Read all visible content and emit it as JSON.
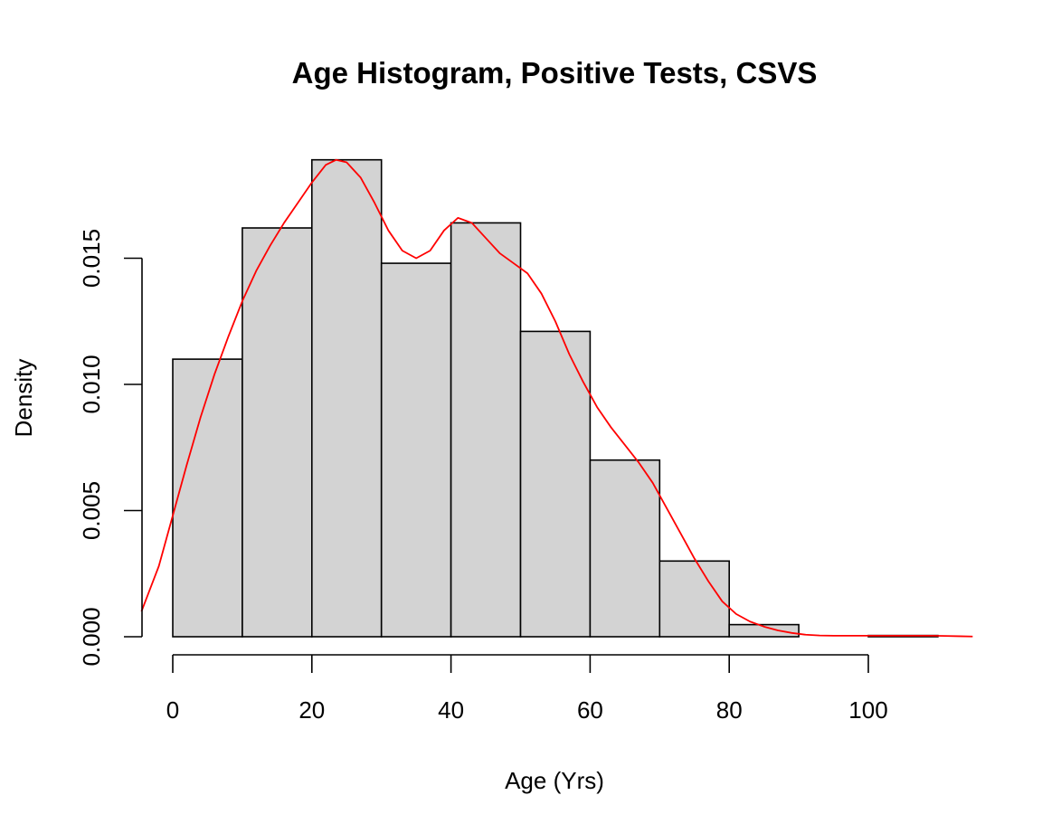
{
  "chart_data": {
    "type": "bar",
    "title": "Age Histogram, Positive Tests,  CSVS",
    "xlabel": "Age (Yrs)",
    "ylabel": "Density",
    "bins": [
      {
        "start": 0,
        "end": 10,
        "density": 0.011
      },
      {
        "start": 10,
        "end": 20,
        "density": 0.0162
      },
      {
        "start": 20,
        "end": 30,
        "density": 0.0189
      },
      {
        "start": 30,
        "end": 40,
        "density": 0.0148
      },
      {
        "start": 40,
        "end": 50,
        "density": 0.0164
      },
      {
        "start": 50,
        "end": 60,
        "density": 0.0121
      },
      {
        "start": 60,
        "end": 70,
        "density": 0.007
      },
      {
        "start": 70,
        "end": 80,
        "density": 0.003
      },
      {
        "start": 80,
        "end": 90,
        "density": 0.00048
      },
      {
        "start": 90,
        "end": 100,
        "density": 0.0
      },
      {
        "start": 100,
        "end": 110,
        "density": 5e-05
      }
    ],
    "x_ticks": [
      0,
      20,
      40,
      60,
      80,
      100
    ],
    "x_tick_labels": [
      "0",
      "20",
      "40",
      "60",
      "80",
      "100"
    ],
    "y_ticks": [
      0,
      0.005,
      0.01,
      0.015
    ],
    "y_tick_labels": [
      "0.000",
      "0.005",
      "0.010",
      "0.015"
    ],
    "xlim": [
      -4.5,
      115
    ],
    "ylim": [
      0,
      0.0189
    ],
    "grid": false,
    "legend": "none",
    "density_curve": {
      "x": [
        -4.5,
        -2,
        0,
        2,
        4,
        6,
        8,
        10,
        12,
        14,
        16,
        18,
        20,
        22,
        23.5,
        25,
        27,
        29,
        31,
        33,
        35,
        37,
        39,
        41,
        43,
        45,
        47,
        49,
        51,
        53,
        55,
        57,
        59,
        61,
        63,
        65,
        67,
        69,
        71,
        73,
        75,
        77,
        79,
        81,
        83,
        85,
        87,
        89,
        91,
        93,
        95,
        97,
        99,
        101,
        103,
        105,
        107,
        109,
        111,
        113,
        115
      ],
      "y": [
        0.001,
        0.0028,
        0.0048,
        0.0068,
        0.0087,
        0.0104,
        0.0119,
        0.0133,
        0.0145,
        0.0155,
        0.0164,
        0.0172,
        0.018,
        0.0187,
        0.0189,
        0.0188,
        0.0182,
        0.0172,
        0.0161,
        0.0153,
        0.015,
        0.0153,
        0.0161,
        0.0166,
        0.0164,
        0.0158,
        0.0152,
        0.0148,
        0.0144,
        0.0136,
        0.0125,
        0.0112,
        0.0101,
        0.0091,
        0.0083,
        0.0076,
        0.0069,
        0.0061,
        0.0051,
        0.0041,
        0.0031,
        0.0022,
        0.0014,
        0.0009,
        0.0006,
        0.0004,
        0.00025,
        0.00015,
        8e-05,
        5e-05,
        4e-05,
        4e-05,
        4e-05,
        4e-05,
        4e-05,
        4e-05,
        4e-05,
        4e-05,
        3e-05,
        2e-05,
        1e-05
      ]
    },
    "colors": {
      "bar_fill": "#d3d3d3",
      "bar_stroke": "#000000",
      "curve": "#ff0000",
      "axis": "#000000"
    }
  }
}
